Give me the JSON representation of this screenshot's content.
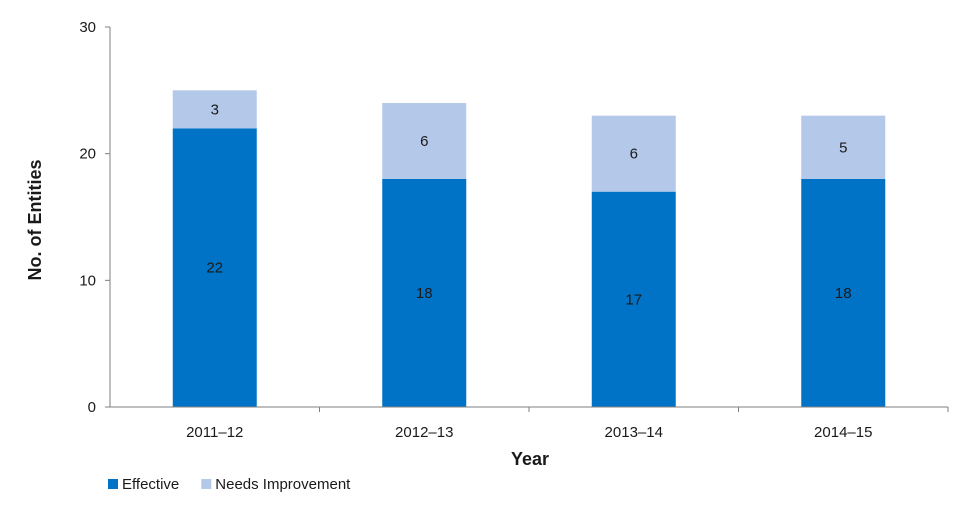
{
  "chart_data": {
    "type": "bar",
    "stacked": true,
    "categories": [
      "2011–12",
      "2012–13",
      "2013–14",
      "2014–15"
    ],
    "series": [
      {
        "name": "Effective",
        "color": "#0073C6",
        "values": [
          22,
          18,
          17,
          18
        ]
      },
      {
        "name": "Needs Improvement",
        "color": "#B4C9E9",
        "values": [
          3,
          6,
          6,
          5
        ]
      }
    ],
    "title": "",
    "xlabel": "Year",
    "ylabel": "No. of Entities",
    "ylim": [
      0,
      30
    ],
    "yticks": [
      0,
      10,
      20,
      30
    ],
    "grid": false,
    "legend_position": "bottom-left"
  }
}
